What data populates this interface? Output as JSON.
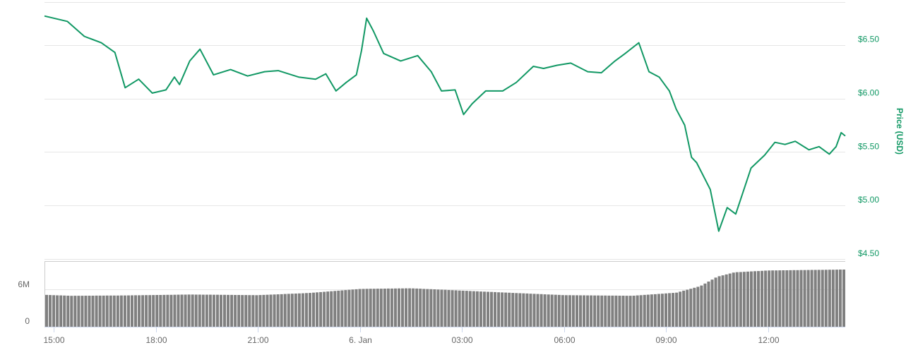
{
  "chart_data": [
    {
      "type": "line",
      "title": "",
      "ylabel": "Price (USD)",
      "y_axis_side": "right",
      "ylim": [
        4.5,
        6.9
      ],
      "y_ticks": [
        "$4.50",
        "$5.00",
        "$5.50",
        "$6.00",
        "$6.50"
      ],
      "y_tick_values": [
        4.5,
        5.0,
        5.5,
        6.0,
        6.5
      ],
      "x_range_hours": [
        14.73,
        38.27
      ],
      "x_ticks": [
        {
          "label": "15:00",
          "hour": 15
        },
        {
          "label": "18:00",
          "hour": 18
        },
        {
          "label": "21:00",
          "hour": 21
        },
        {
          "label": "6. Jan",
          "hour": 24
        },
        {
          "label": "03:00",
          "hour": 27
        },
        {
          "label": "06:00",
          "hour": 30
        },
        {
          "label": "09:00",
          "hour": 33
        },
        {
          "label": "12:00",
          "hour": 36
        }
      ],
      "grid": true,
      "series": [
        {
          "name": "",
          "color": "#119864",
          "x_hours": [
            14.73,
            15.4,
            15.9,
            16.4,
            16.8,
            17.1,
            17.5,
            17.9,
            18.3,
            18.55,
            18.7,
            19.0,
            19.3,
            19.7,
            20.2,
            20.7,
            21.2,
            21.6,
            22.2,
            22.7,
            23.0,
            23.3,
            23.6,
            23.9,
            24.05,
            24.2,
            24.4,
            24.7,
            25.2,
            25.7,
            26.1,
            26.4,
            26.8,
            27.05,
            27.3,
            27.7,
            28.2,
            28.6,
            29.1,
            29.4,
            29.8,
            30.2,
            30.7,
            31.1,
            31.5,
            31.8,
            32.2,
            32.5,
            32.8,
            33.1,
            33.3,
            33.55,
            33.75,
            33.9,
            34.3,
            34.55,
            34.8,
            35.05,
            35.5,
            35.9,
            36.2,
            36.5,
            36.8,
            37.2,
            37.5,
            37.8,
            38.0,
            38.15,
            38.27
          ],
          "values": [
            6.77,
            6.72,
            6.58,
            6.52,
            6.43,
            6.1,
            6.18,
            6.05,
            6.08,
            6.2,
            6.13,
            6.35,
            6.46,
            6.22,
            6.27,
            6.21,
            6.25,
            6.26,
            6.2,
            6.18,
            6.23,
            6.07,
            6.15,
            6.22,
            6.45,
            6.75,
            6.63,
            6.42,
            6.35,
            6.4,
            6.25,
            6.07,
            6.08,
            5.85,
            5.95,
            6.07,
            6.07,
            6.15,
            6.3,
            6.28,
            6.31,
            6.33,
            6.25,
            6.24,
            6.35,
            6.42,
            6.52,
            6.25,
            6.2,
            6.07,
            5.9,
            5.75,
            5.45,
            5.4,
            5.15,
            4.76,
            4.98,
            4.92,
            5.35,
            5.47,
            5.59,
            5.57,
            5.6,
            5.52,
            5.55,
            5.48,
            5.55,
            5.68,
            5.65
          ]
        }
      ]
    },
    {
      "type": "bar",
      "title": "",
      "ylabel": "",
      "y_ticks": [
        "0",
        "6M"
      ],
      "y_tick_values": [
        0,
        6000000
      ],
      "ylim": [
        0,
        10500000
      ],
      "x_range_hours": [
        14.73,
        38.27
      ],
      "grid": true,
      "bar_color": "#808080",
      "bar_count": 225,
      "profile": {
        "hours": [
          14.73,
          15.5,
          17.0,
          19.0,
          21.0,
          22.5,
          24.0,
          25.5,
          27.5,
          30.0,
          32.0,
          33.3,
          34.0,
          34.5,
          35.0,
          36.0,
          38.27
        ],
        "values": [
          5100000,
          4950000,
          5000000,
          5150000,
          5050000,
          5400000,
          6050000,
          6150000,
          5650000,
          5050000,
          4950000,
          5450000,
          6500000,
          8000000,
          8700000,
          9000000,
          9150000
        ]
      }
    }
  ]
}
